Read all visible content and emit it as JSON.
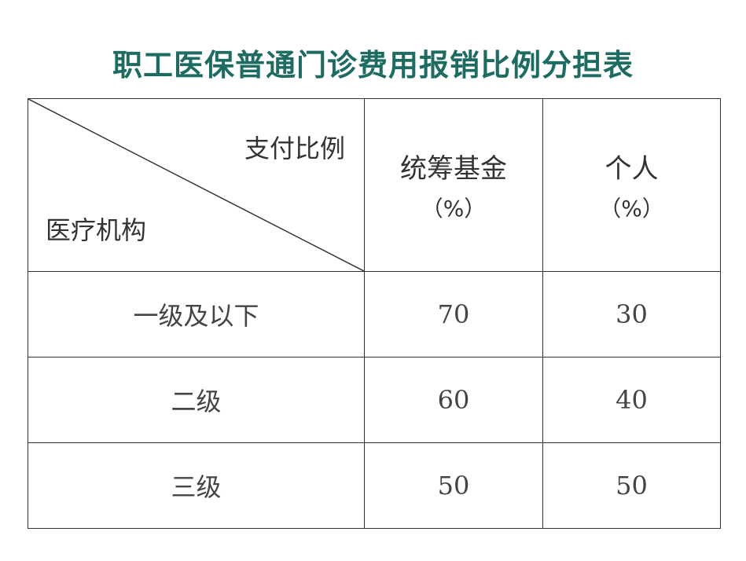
{
  "title": "职工医保普通门诊费用报销比例分担表",
  "table": {
    "corner_top_right": "支付比例",
    "corner_bottom_left": "医疗机构",
    "columns": [
      {
        "label": "统筹基金",
        "unit": "（%）"
      },
      {
        "label": "个人",
        "unit": "（%）"
      }
    ],
    "rows": [
      {
        "institution": "一级及以下",
        "fund": "70",
        "personal": "30"
      },
      {
        "institution": "二级",
        "fund": "60",
        "personal": "40"
      },
      {
        "institution": "三级",
        "fund": "50",
        "personal": "50"
      }
    ]
  },
  "colors": {
    "title": "#1e6b62",
    "border": "#333333"
  }
}
